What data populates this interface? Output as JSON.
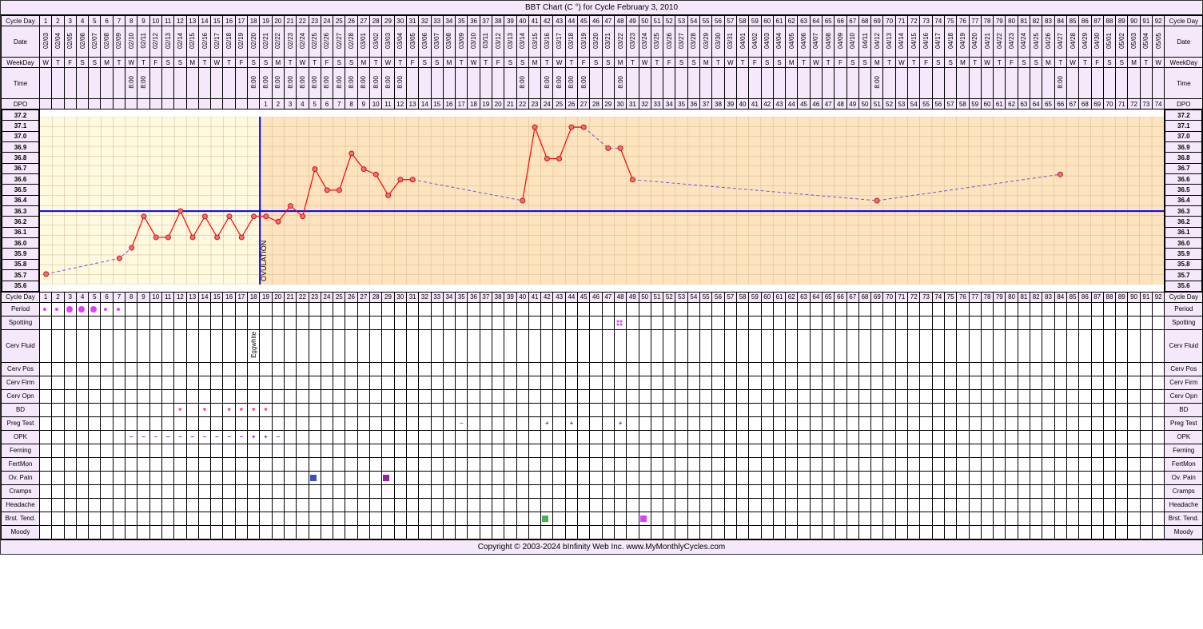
{
  "title": "BBT Chart (C °) for Cycle February 3, 2010",
  "footer": "Copyright © 2003-2024 bInfinity Web Inc.    www.MyMonthlyCycles.com",
  "num_days": 92,
  "row_labels": {
    "cycle_day": "Cycle Day",
    "date": "Date",
    "weekday": "WeekDay",
    "time": "Time",
    "dpo": "DPO",
    "period": "Period",
    "spotting": "Spotting",
    "cerv_fluid": "Cerv Fluid",
    "cerv_pos": "Cerv Pos",
    "cerv_firm": "Cerv Firm",
    "cerv_opn": "Cerv Opn",
    "bd": "BD",
    "preg": "Preg Test",
    "opk": "OPK",
    "ferning": "Ferning",
    "fertmon": "FertMon",
    "ovpain": "Ov. Pain",
    "cramps": "Cramps",
    "headache": "Headache",
    "brst": "Brst. Tend.",
    "moody": "Moody"
  },
  "dates": [
    "02/03",
    "02/04",
    "02/05",
    "02/06",
    "02/07",
    "02/08",
    "02/09",
    "02/10",
    "02/11",
    "02/12",
    "02/13",
    "02/14",
    "02/15",
    "02/16",
    "02/17",
    "02/18",
    "02/19",
    "02/20",
    "02/21",
    "02/22",
    "02/23",
    "02/24",
    "02/25",
    "02/26",
    "02/27",
    "02/28",
    "03/01",
    "03/02",
    "03/03",
    "03/04",
    "03/05",
    "03/06",
    "03/07",
    "03/08",
    "03/09",
    "03/10",
    "03/11",
    "03/12",
    "03/13",
    "03/14",
    "03/15",
    "03/16",
    "03/17",
    "03/18",
    "03/19",
    "03/20",
    "03/21",
    "03/22",
    "03/23",
    "03/24",
    "03/25",
    "03/26",
    "03/27",
    "03/28",
    "03/29",
    "03/30",
    "03/31",
    "04/01",
    "04/02",
    "04/03",
    "04/04",
    "04/05",
    "04/06",
    "04/07",
    "04/08",
    "04/09",
    "04/10",
    "04/11",
    "04/12",
    "04/13",
    "04/14",
    "04/15",
    "04/16",
    "04/17",
    "04/18",
    "04/19",
    "04/20",
    "04/21",
    "04/22",
    "04/23",
    "04/24",
    "04/25",
    "04/26",
    "04/27",
    "04/28",
    "04/29",
    "04/30",
    "05/01",
    "05/02",
    "05/03",
    "05/04",
    "05/05"
  ],
  "weekdays": [
    "W",
    "T",
    "F",
    "S",
    "S",
    "M",
    "T",
    "W",
    "T",
    "F",
    "S",
    "S",
    "M",
    "T",
    "W",
    "T",
    "F",
    "S",
    "S",
    "M",
    "T",
    "W",
    "T",
    "F",
    "S",
    "S",
    "M",
    "T",
    "W",
    "T",
    "F",
    "S",
    "S",
    "M",
    "T",
    "W",
    "T",
    "F",
    "S",
    "S",
    "M",
    "T",
    "W",
    "T",
    "F",
    "S",
    "S",
    "M",
    "T",
    "W",
    "T",
    "F",
    "S",
    "S",
    "M",
    "T",
    "W",
    "T",
    "F",
    "S",
    "S",
    "M",
    "T",
    "W",
    "T",
    "F",
    "S",
    "S",
    "M",
    "T",
    "W",
    "T",
    "F",
    "S",
    "S",
    "M",
    "T",
    "W",
    "T",
    "F",
    "S",
    "S",
    "M",
    "T",
    "W",
    "T",
    "F",
    "S",
    "S",
    "M",
    "T",
    "W"
  ],
  "times": {
    "8": "8:00",
    "9": "8:00",
    "18": "8:00",
    "19": "8:00",
    "20": "8:00",
    "21": "8:00",
    "22": "8:00",
    "23": "8:00",
    "24": "8:00",
    "25": "8:00",
    "26": "8:00",
    "27": "8:00",
    "28": "8:00",
    "29": "8:00",
    "30": "8:00",
    "40": "8:00",
    "42": "8:00",
    "43": "8:00",
    "44": "8:00",
    "45": "8:00",
    "48": "8:00",
    "69": "8:00",
    "84": "8:00"
  },
  "dpo_start": 19,
  "chart": {
    "y_labels": [
      "37.2",
      "37.1",
      "37.0",
      "36.9",
      "36.8",
      "36.7",
      "36.6",
      "36.5",
      "36.4",
      "36.3",
      "36.2",
      "36.1",
      "36.0",
      "35.9",
      "35.8",
      "35.7",
      "35.6"
    ],
    "y_min": 35.6,
    "y_max": 37.2,
    "coverline": 36.3,
    "ovulation_day": 18,
    "ovulation_label": "OVULATION",
    "luteal_bg": "#fde4bf",
    "follicular_bg": "#fff9e0",
    "coverline_color": "#0000ff",
    "ovline_color": "#0000ff",
    "solid_color": "#ff0000",
    "dashed_color": "#6a5acd",
    "point_fill": "#ff6b6b",
    "point_stroke": "#b71c1c",
    "grid_color": "#d0b890",
    "points": {
      "1": 35.7,
      "7": 35.85,
      "8": 35.95,
      "9": 36.25,
      "10": 36.05,
      "11": 36.05,
      "12": 36.3,
      "13": 36.05,
      "14": 36.25,
      "15": 36.05,
      "16": 36.25,
      "17": 36.05,
      "18": 36.25,
      "19": 36.25,
      "20": 36.2,
      "21": 36.35,
      "22": 36.25,
      "23": 36.7,
      "24": 36.5,
      "25": 36.5,
      "26": 36.85,
      "27": 36.7,
      "28": 36.65,
      "29": 36.45,
      "30": 36.6,
      "31": 36.6,
      "40": 36.4,
      "41": 37.1,
      "42": 36.8,
      "43": 36.8,
      "44": 37.1,
      "45": 37.1,
      "47": 36.9,
      "48": 36.9,
      "49": 36.6,
      "69": 36.4,
      "84": 36.65
    },
    "solid_segments": [
      [
        8,
        9,
        10,
        11,
        12,
        13,
        14,
        15,
        16,
        17,
        18,
        19,
        20,
        21,
        22,
        23,
        24,
        25,
        26,
        27,
        28,
        29,
        30,
        31
      ],
      [
        40,
        41,
        42,
        43,
        44,
        45
      ],
      [
        48,
        49
      ]
    ],
    "dashed_segments": [
      [
        1,
        7,
        8
      ],
      [
        31,
        40
      ],
      [
        45,
        47,
        48
      ],
      [
        49,
        69,
        84
      ]
    ]
  },
  "period": {
    "1": "s",
    "2": "s",
    "3": "l",
    "4": "l",
    "5": "l",
    "6": "s",
    "7": "s"
  },
  "spotting": {
    "48": true
  },
  "cerv_fluid": {
    "18": "Eggwhite"
  },
  "bd": [
    12,
    14,
    16,
    17,
    18,
    19
  ],
  "preg": {
    "35": "-",
    "42": "+",
    "44": "+",
    "48": "+"
  },
  "opk": {
    "8": "-",
    "9": "-",
    "10": "-",
    "11": "-",
    "12": "-",
    "13": "-",
    "14": "-",
    "15": "-",
    "16": "-",
    "17": "-",
    "18": "+",
    "19": "+",
    "20": "-"
  },
  "ovpain": {
    "23": "b",
    "29": "p"
  },
  "brst": {
    "42": "g",
    "50": "m"
  }
}
